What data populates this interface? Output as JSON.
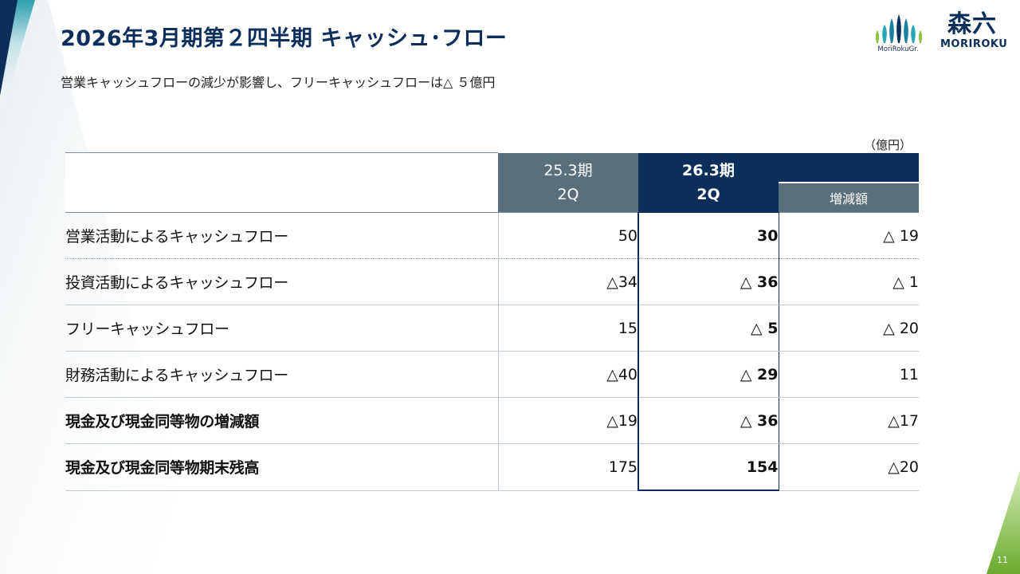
{
  "slide": {
    "title": "2026年3月期第２四半期 キャッシュ･フロー",
    "subtitle": "営業キャッシュフローの減少が影響し、フリーキャッシュフローは△ ５億円",
    "unit": "（億円）",
    "page_number": "11"
  },
  "logos": {
    "group_text": "MoriRokuGr.",
    "brand_kanji": "森六",
    "brand_text": "MORIROKU"
  },
  "table": {
    "headers": {
      "prev_period": "25.3期",
      "prev_quarter": "2Q",
      "curr_period": "26.3期",
      "curr_quarter": "2Q",
      "diff": "増減額"
    },
    "rows": [
      {
        "label": "営業活動によるキャッシュフロー",
        "prev": "50",
        "curr": "30",
        "diff": "△ 19",
        "bold": false
      },
      {
        "label": "投資活動によるキャッシュフロー",
        "prev": "△34",
        "curr": "△ 36",
        "diff": "△ 1",
        "bold": false
      },
      {
        "label": "フリーキャッシュフロー",
        "prev": "15",
        "curr": "△ 5",
        "diff": "△ 20",
        "bold": false
      },
      {
        "label": "財務活動によるキャッシュフロー",
        "prev": "△40",
        "curr": "△ 29",
        "diff": "11",
        "bold": false
      },
      {
        "label": "現金及び現金同等物の増減額",
        "prev": "△19",
        "curr": "△ 36",
        "diff": "△17",
        "bold": true
      },
      {
        "label": "現金及び現金同等物期末残高",
        "prev": "175",
        "curr": "154",
        "diff": "△20",
        "bold": true
      }
    ]
  },
  "colors": {
    "navy": "#0b2f5a",
    "slate": "#58707e",
    "accent_teal": "#2aa7b5",
    "accent_green": "#7bb83a"
  }
}
